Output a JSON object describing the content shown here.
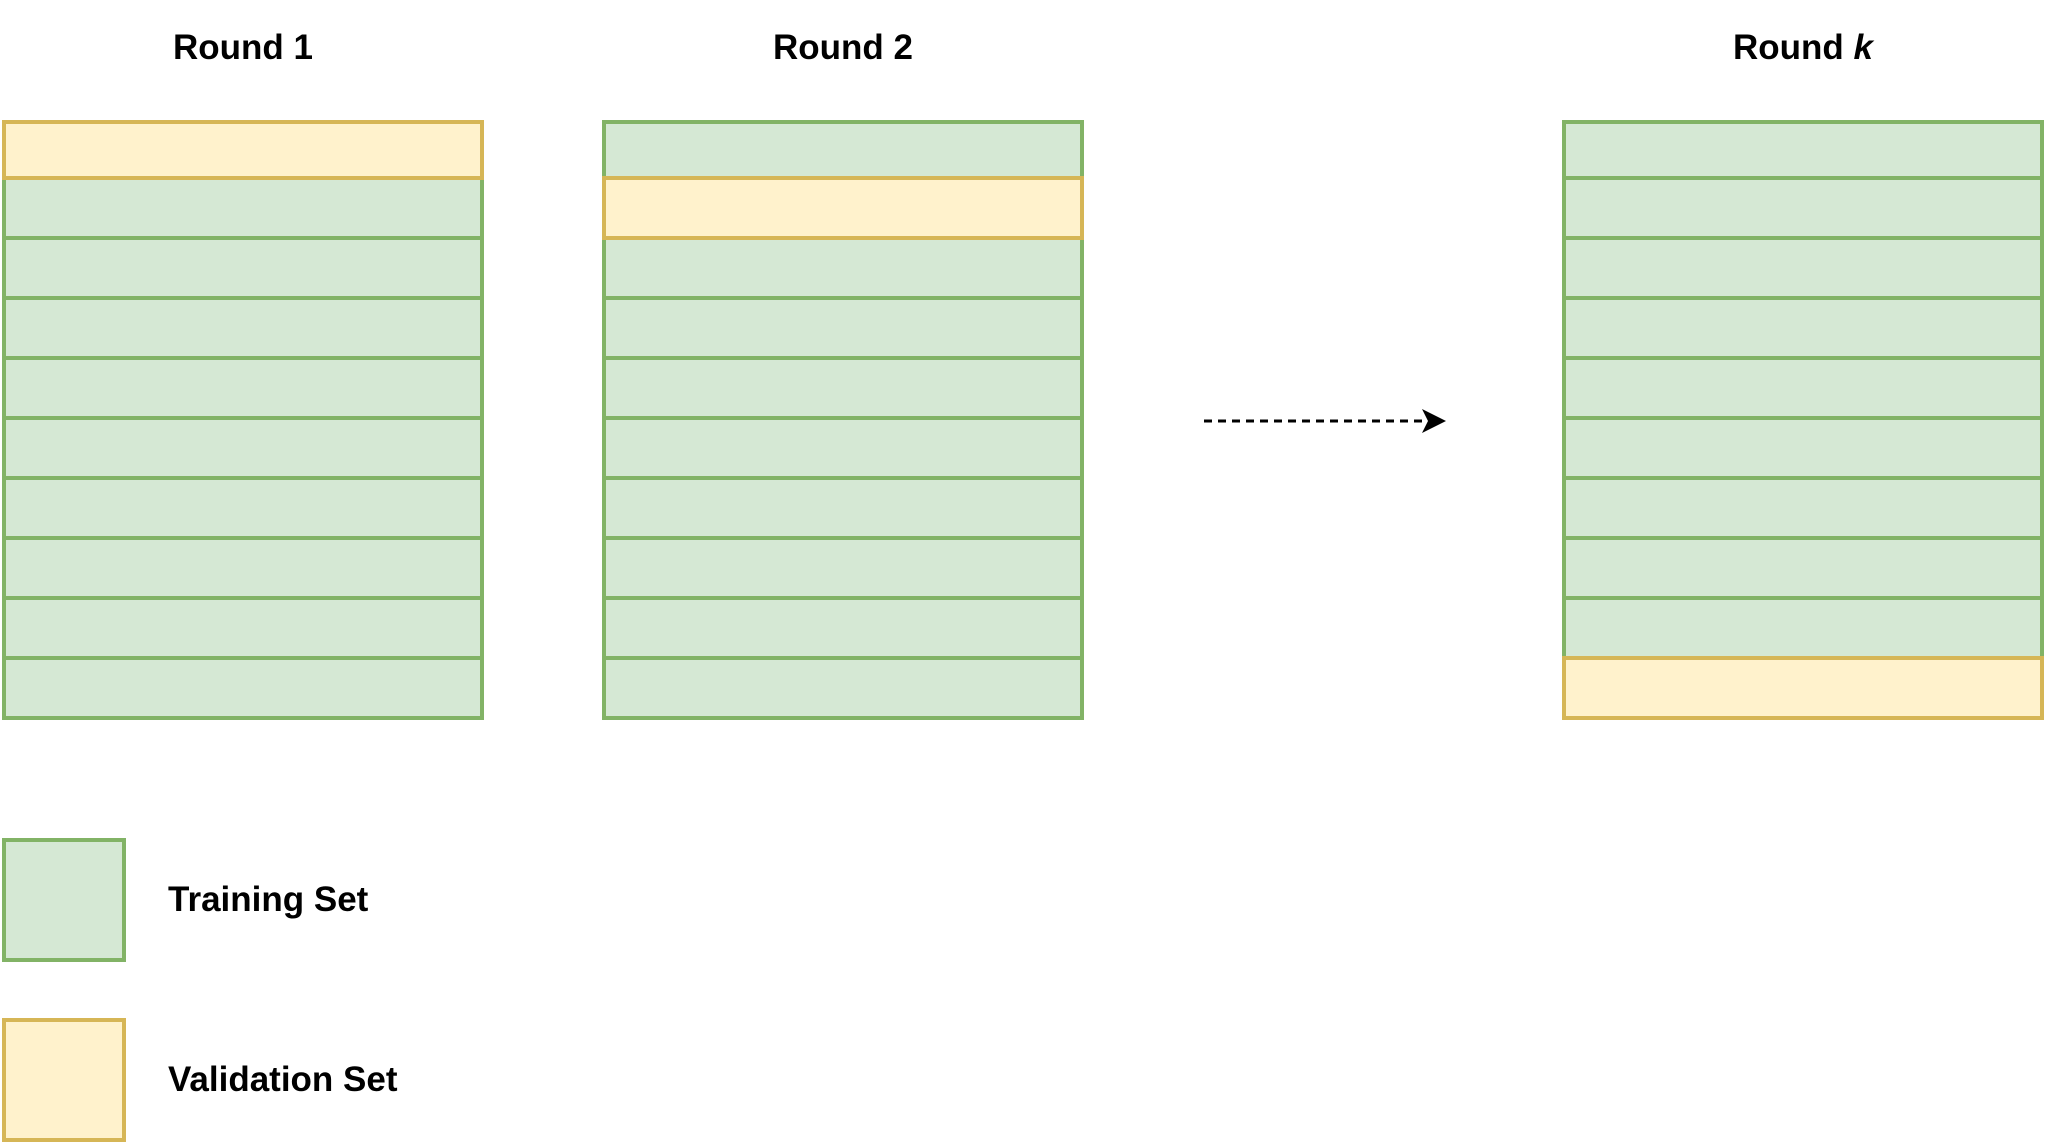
{
  "rounds": [
    {
      "label_text": "Round ",
      "label_var": "1",
      "validation_fold": 1
    },
    {
      "label_text": "Round ",
      "label_var": "2",
      "validation_fold": 2
    },
    {
      "label_text": "Round ",
      "label_var": "k",
      "validation_fold": 10
    }
  ],
  "folds_per_round": 10,
  "legend": {
    "training_label": "Training Set",
    "validation_label": "Validation Set"
  },
  "colors": {
    "training_fill": "#d5e8d4",
    "training_border": "#82b366",
    "validation_fill": "#fff2cc",
    "validation_border": "#d6b656"
  }
}
